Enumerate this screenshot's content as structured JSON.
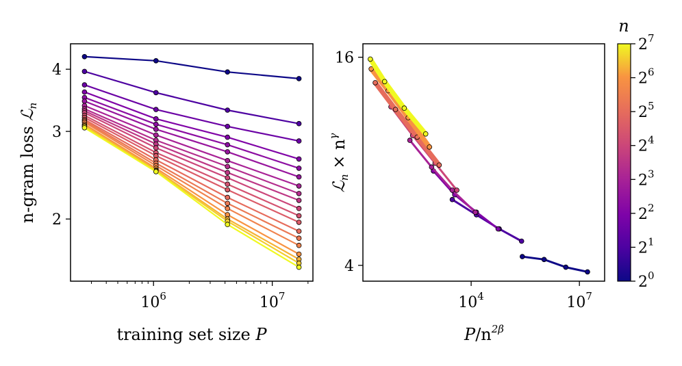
{
  "chart_data": [
    {
      "type": "line",
      "xlabel_text": "training set size ",
      "xlabel_var": "P",
      "ylabel_text": "n-gram loss ",
      "ylabel_var": "ℒ",
      "ylabel_sub": "n",
      "x_scale": "log",
      "y_scale": "log",
      "xlim": [
        200000,
        22000000
      ],
      "ylim": [
        1.5,
        4.5
      ],
      "x_tick_labels": [
        {
          "base": "10",
          "exp": "6",
          "value": 1000000
        },
        {
          "base": "10",
          "exp": "7",
          "value": 10000000
        }
      ],
      "y_tick_labels": [
        {
          "label": "2",
          "value": 2
        },
        {
          "label": "3",
          "value": 3
        },
        {
          "label": "4",
          "value": 4
        }
      ],
      "x": [
        262144,
        1048576,
        4194304,
        16777216
      ],
      "series": [
        {
          "n": 1,
          "values": [
            4.24,
            4.16,
            3.95,
            3.83
          ]
        },
        {
          "n": 2,
          "values": [
            3.96,
            3.59,
            3.31,
            3.11
          ]
        },
        {
          "n": 3,
          "values": [
            3.72,
            3.32,
            3.07,
            2.87
          ]
        },
        {
          "n": 4,
          "values": [
            3.6,
            3.18,
            2.92,
            2.64
          ]
        },
        {
          "n": 5,
          "values": [
            3.51,
            3.1,
            2.82,
            2.53
          ]
        },
        {
          "n": 6,
          "values": [
            3.45,
            3.03,
            2.73,
            2.43
          ]
        },
        {
          "n": 8,
          "values": [
            3.38,
            2.95,
            2.62,
            2.33
          ]
        },
        {
          "n": 10,
          "values": [
            3.33,
            2.88,
            2.55,
            2.25
          ]
        },
        {
          "n": 12,
          "values": [
            3.3,
            2.83,
            2.48,
            2.18
          ]
        },
        {
          "n": 16,
          "values": [
            3.27,
            2.78,
            2.42,
            2.1
          ]
        },
        {
          "n": 20,
          "values": [
            3.23,
            2.72,
            2.35,
            2.03
          ]
        },
        {
          "n": 24,
          "values": [
            3.2,
            2.68,
            2.29,
            1.97
          ]
        },
        {
          "n": 32,
          "values": [
            3.17,
            2.63,
            2.21,
            1.89
          ]
        },
        {
          "n": 40,
          "values": [
            3.15,
            2.59,
            2.15,
            1.83
          ]
        },
        {
          "n": 48,
          "values": [
            3.13,
            2.56,
            2.1,
            1.77
          ]
        },
        {
          "n": 64,
          "values": [
            3.1,
            2.53,
            2.04,
            1.7
          ]
        },
        {
          "n": 80,
          "values": [
            3.08,
            2.51,
            2.0,
            1.66
          ]
        },
        {
          "n": 96,
          "values": [
            3.07,
            2.5,
            1.98,
            1.63
          ]
        },
        {
          "n": 128,
          "values": [
            3.05,
            2.49,
            1.95,
            1.6
          ]
        }
      ]
    },
    {
      "type": "scatter",
      "xlabel_var": "P",
      "xlabel_rest": "/n",
      "xlabel_exp": "2β",
      "ylabel_var": "ℒ",
      "ylabel_sub": "n",
      "ylabel_rest": " × n",
      "ylabel_exp": "γ",
      "x_scale": "log",
      "y_scale": "log",
      "xlim": [
        10,
        50000000
      ],
      "ylim": [
        3.6,
        17.5
      ],
      "x_tick_labels": [
        {
          "base": "10",
          "exp": "4",
          "value": 10000
        },
        {
          "base": "10",
          "exp": "7",
          "value": 10000000
        }
      ],
      "y_tick_labels": [
        {
          "label": "16",
          "value": 16
        },
        {
          "label": "4",
          "value": 4
        }
      ],
      "series": [
        {
          "n": 1,
          "x": [
            262144,
            1048576,
            4194304,
            16777216
          ],
          "values": [
            4.24,
            4.16,
            3.95,
            3.83
          ]
        },
        {
          "n": 2,
          "x": [
            3000,
            14000,
            60000,
            250000
          ],
          "values": [
            6.2,
            5.6,
            5.1,
            4.7
          ]
        },
        {
          "n": 4,
          "x": [
            900,
            3500,
            14000,
            56000
          ],
          "values": [
            7.5,
            6.4,
            5.7,
            5.1
          ]
        },
        {
          "n": 8,
          "x": [
            200,
            800,
            3000,
            13000
          ],
          "values": [
            9.2,
            7.7,
            6.6,
            5.7
          ]
        },
        {
          "n": 16,
          "x": [
            60,
            240,
            1000,
            4000
          ],
          "values": [
            11.5,
            9.5,
            7.9,
            6.6
          ]
        },
        {
          "n": 32,
          "x": [
            22,
            80,
            320,
            1300
          ],
          "values": [
            13.5,
            11.3,
            9.4,
            7.8
          ]
        },
        {
          "n": 64,
          "x": [
            17,
            50,
            180,
            700
          ],
          "values": [
            14.8,
            12.8,
            10.7,
            8.8
          ]
        },
        {
          "n": 128,
          "x": [
            16,
            40,
            140,
            550
          ],
          "values": [
            15.8,
            13.6,
            11.4,
            9.6
          ]
        }
      ]
    }
  ],
  "colorbar": {
    "title": "n",
    "colormap": "plasma",
    "ticks": [
      {
        "base": "2",
        "exp": "0"
      },
      {
        "base": "2",
        "exp": "1"
      },
      {
        "base": "2",
        "exp": "2"
      },
      {
        "base": "2",
        "exp": "3"
      },
      {
        "base": "2",
        "exp": "4"
      },
      {
        "base": "2",
        "exp": "5"
      },
      {
        "base": "2",
        "exp": "6"
      },
      {
        "base": "2",
        "exp": "7"
      }
    ]
  }
}
